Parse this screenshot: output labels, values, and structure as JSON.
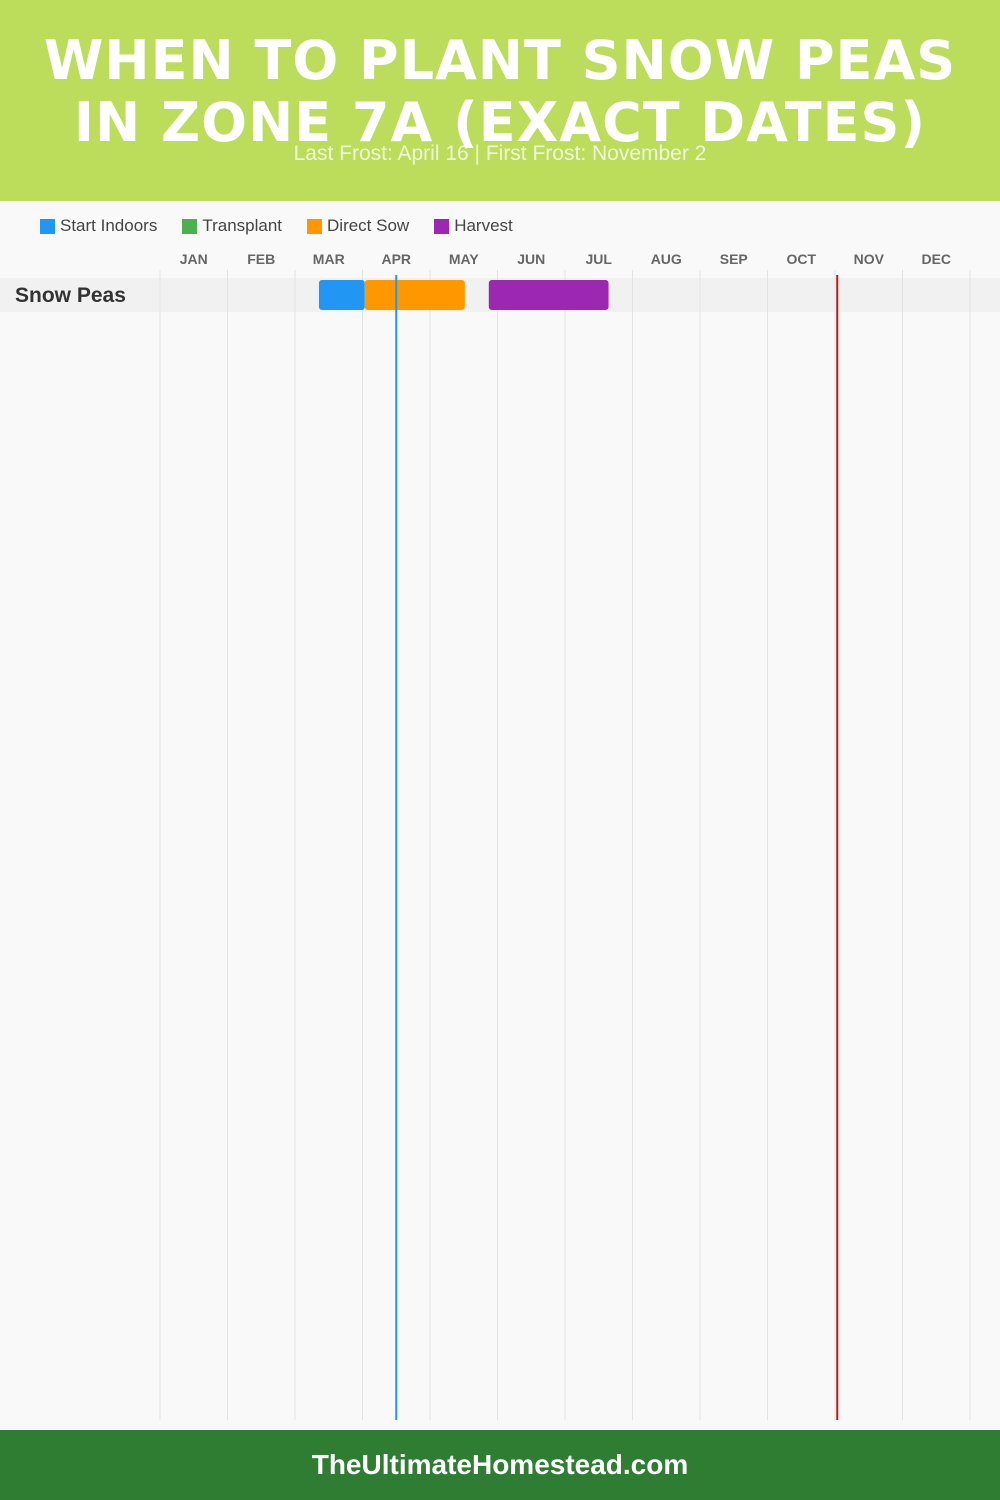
{
  "header": {
    "title": "When to Plant Snow Peas in Zone 7a (Exact Dates)",
    "subtitle": "Last Frost: April 16 | First Frost: November 2"
  },
  "legend": [
    {
      "label": "Start Indoors",
      "color": "#2196f3"
    },
    {
      "label": "Transplant",
      "color": "#4caf50"
    },
    {
      "label": "Direct Sow",
      "color": "#ff9800"
    },
    {
      "label": "Harvest",
      "color": "#9c27b0"
    }
  ],
  "chart_data": {
    "type": "gantt",
    "months": [
      "JAN",
      "FEB",
      "MAR",
      "APR",
      "MAY",
      "JUN",
      "JUL",
      "AUG",
      "SEP",
      "OCT",
      "NOV",
      "DEC"
    ],
    "rows": [
      {
        "label": "Snow Peas",
        "bars": [
          {
            "phase": "Start Indoors",
            "start": "03-12",
            "end": "04-02",
            "color": "#2196f3"
          },
          {
            "phase": "Direct Sow",
            "start": "04-02",
            "end": "05-17",
            "color": "#ff9800"
          },
          {
            "phase": "Harvest",
            "start": "05-28",
            "end": "07-21",
            "color": "#9c27b0"
          }
        ]
      }
    ],
    "markers": [
      {
        "date": "04-16",
        "color": "#2196f3"
      },
      {
        "date": "11-02",
        "color": "#b71c1c"
      }
    ]
  },
  "footer": {
    "text": "TheUltimateHomestead.com"
  }
}
